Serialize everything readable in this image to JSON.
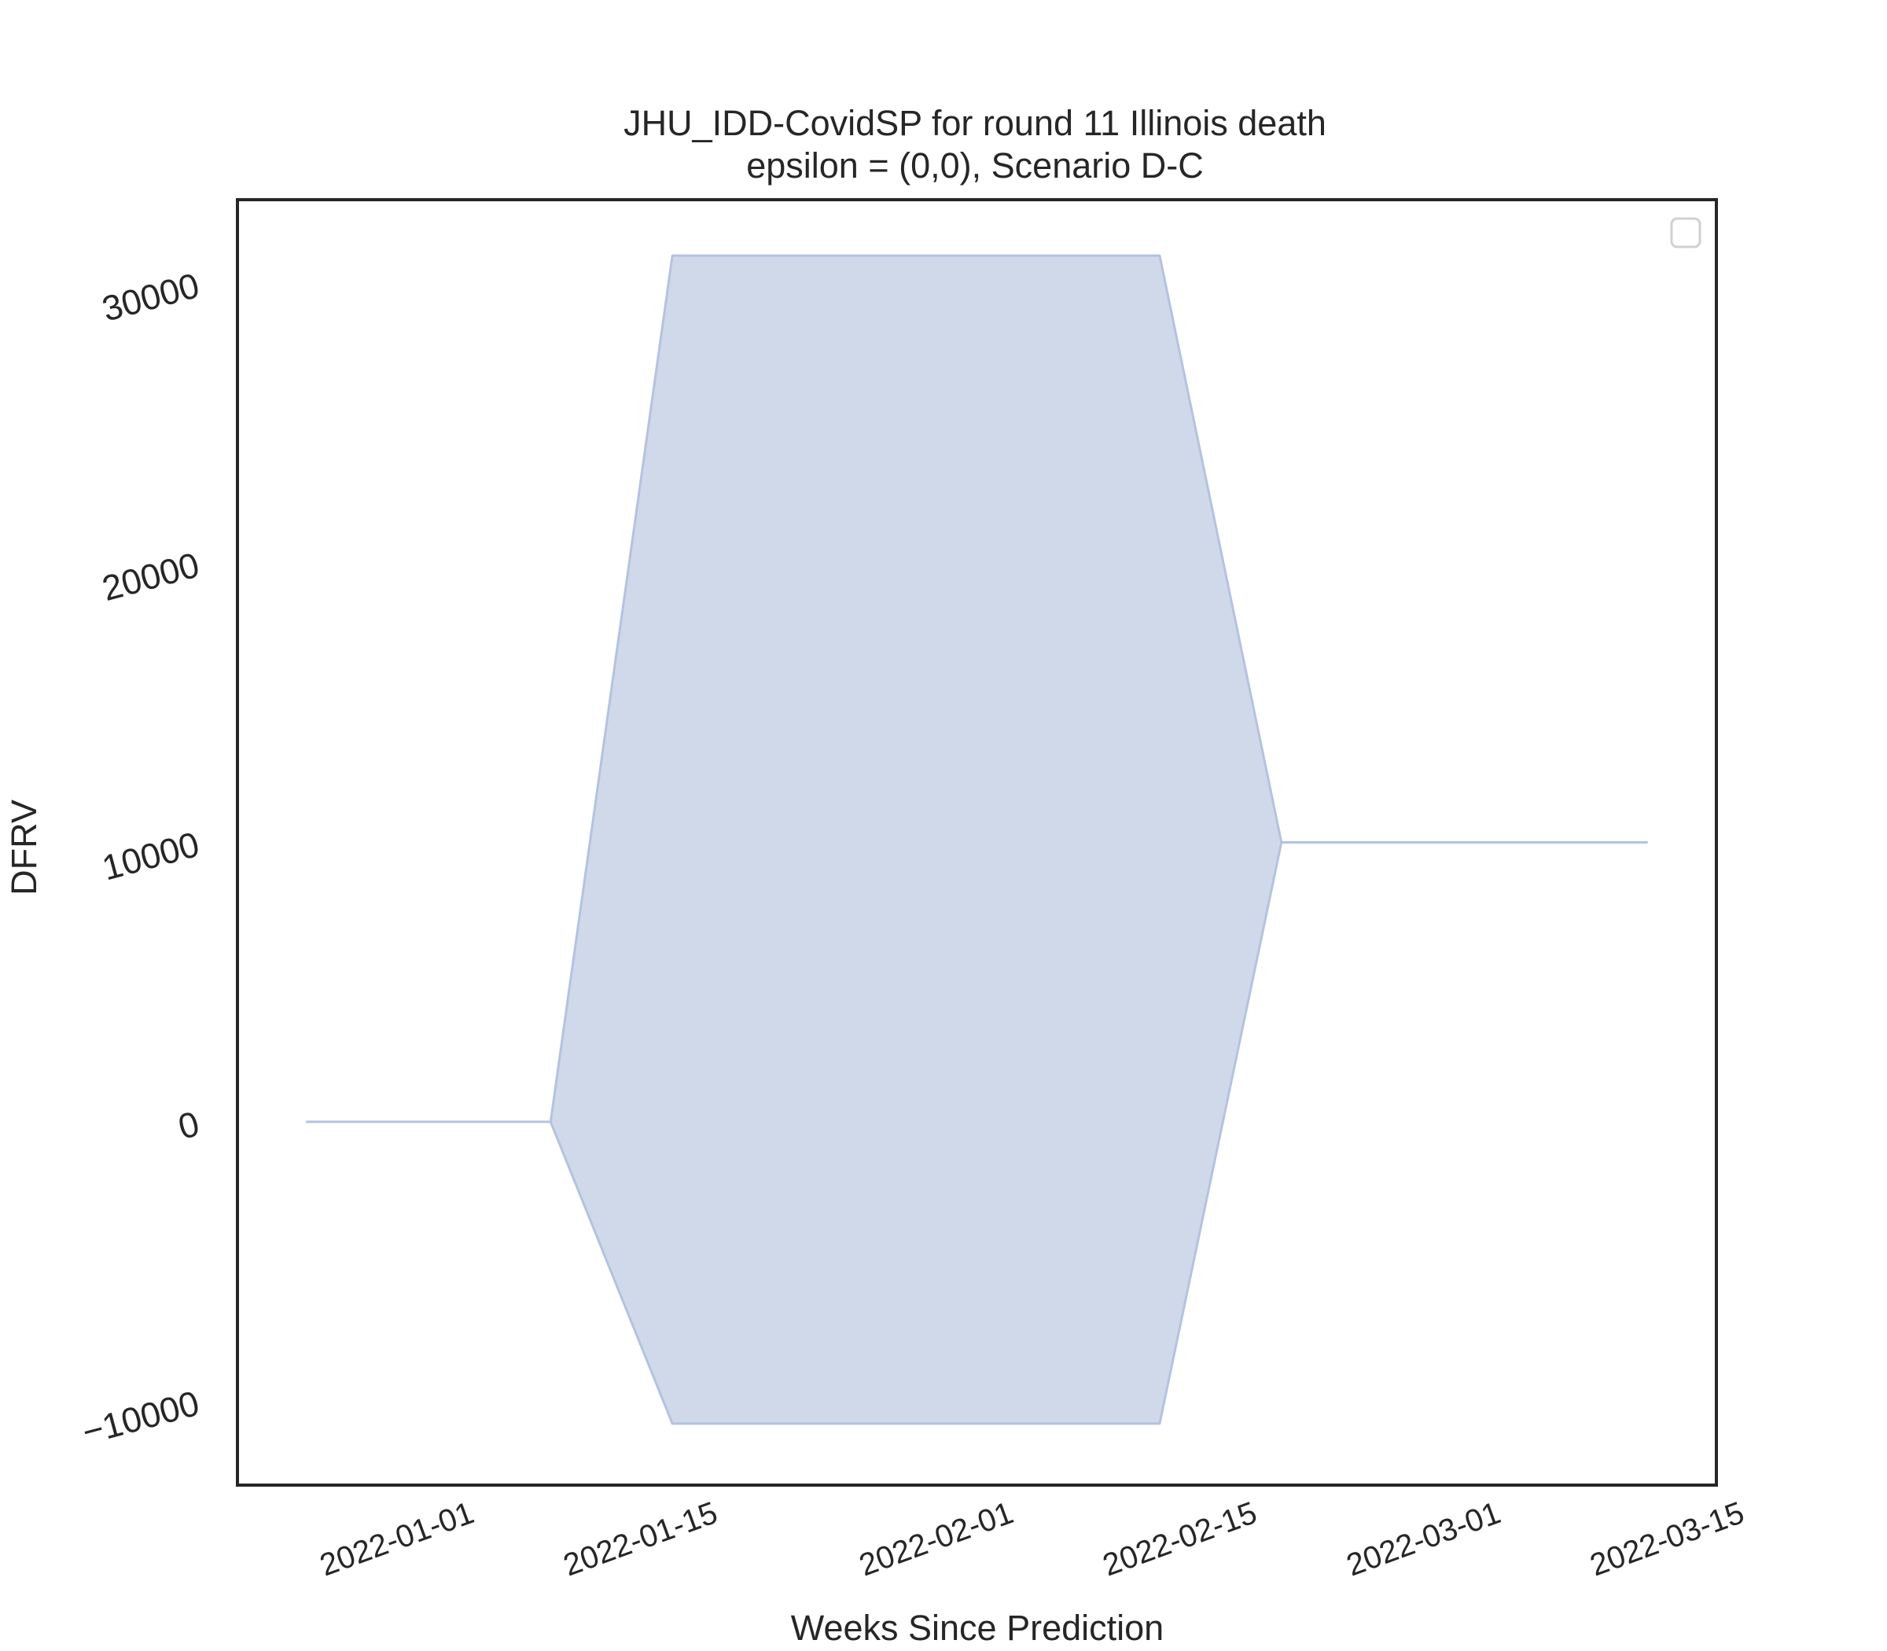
{
  "chart_data": {
    "type": "area",
    "title": "JHU_IDD-CovidSP for round 11 Illinois death",
    "subtitle": "epsilon = (0,0), Scenario D-C",
    "xlabel": "Weeks Since Prediction",
    "ylabel": "DFRV",
    "x": [
      "2021-12-25",
      "2022-01-08",
      "2022-01-15",
      "2022-02-12",
      "2022-02-19",
      "2022-03-12"
    ],
    "series": [
      {
        "role": "upper",
        "values": [
          0,
          0,
          31000,
          31000,
          10000,
          10000
        ]
      },
      {
        "role": "lower",
        "values": [
          0,
          0,
          -10800,
          -10800,
          10000,
          10000
        ]
      }
    ],
    "xticks": [
      "2022-01-01",
      "2022-01-15",
      "2022-02-01",
      "2022-02-15",
      "2022-03-01",
      "2022-03-15"
    ],
    "yticks": [
      -10000,
      0,
      10000,
      20000,
      30000
    ],
    "ytick_labels": [
      "−10000",
      "0",
      "10000",
      "20000",
      "30000"
    ],
    "xlim": [
      "2021-12-21",
      "2022-03-16"
    ],
    "ylim": [
      -13000,
      33000
    ],
    "fill_color": "#cfd9ea",
    "line_color": "#b3c3df",
    "grid": false,
    "legend": "top-right (empty)"
  }
}
